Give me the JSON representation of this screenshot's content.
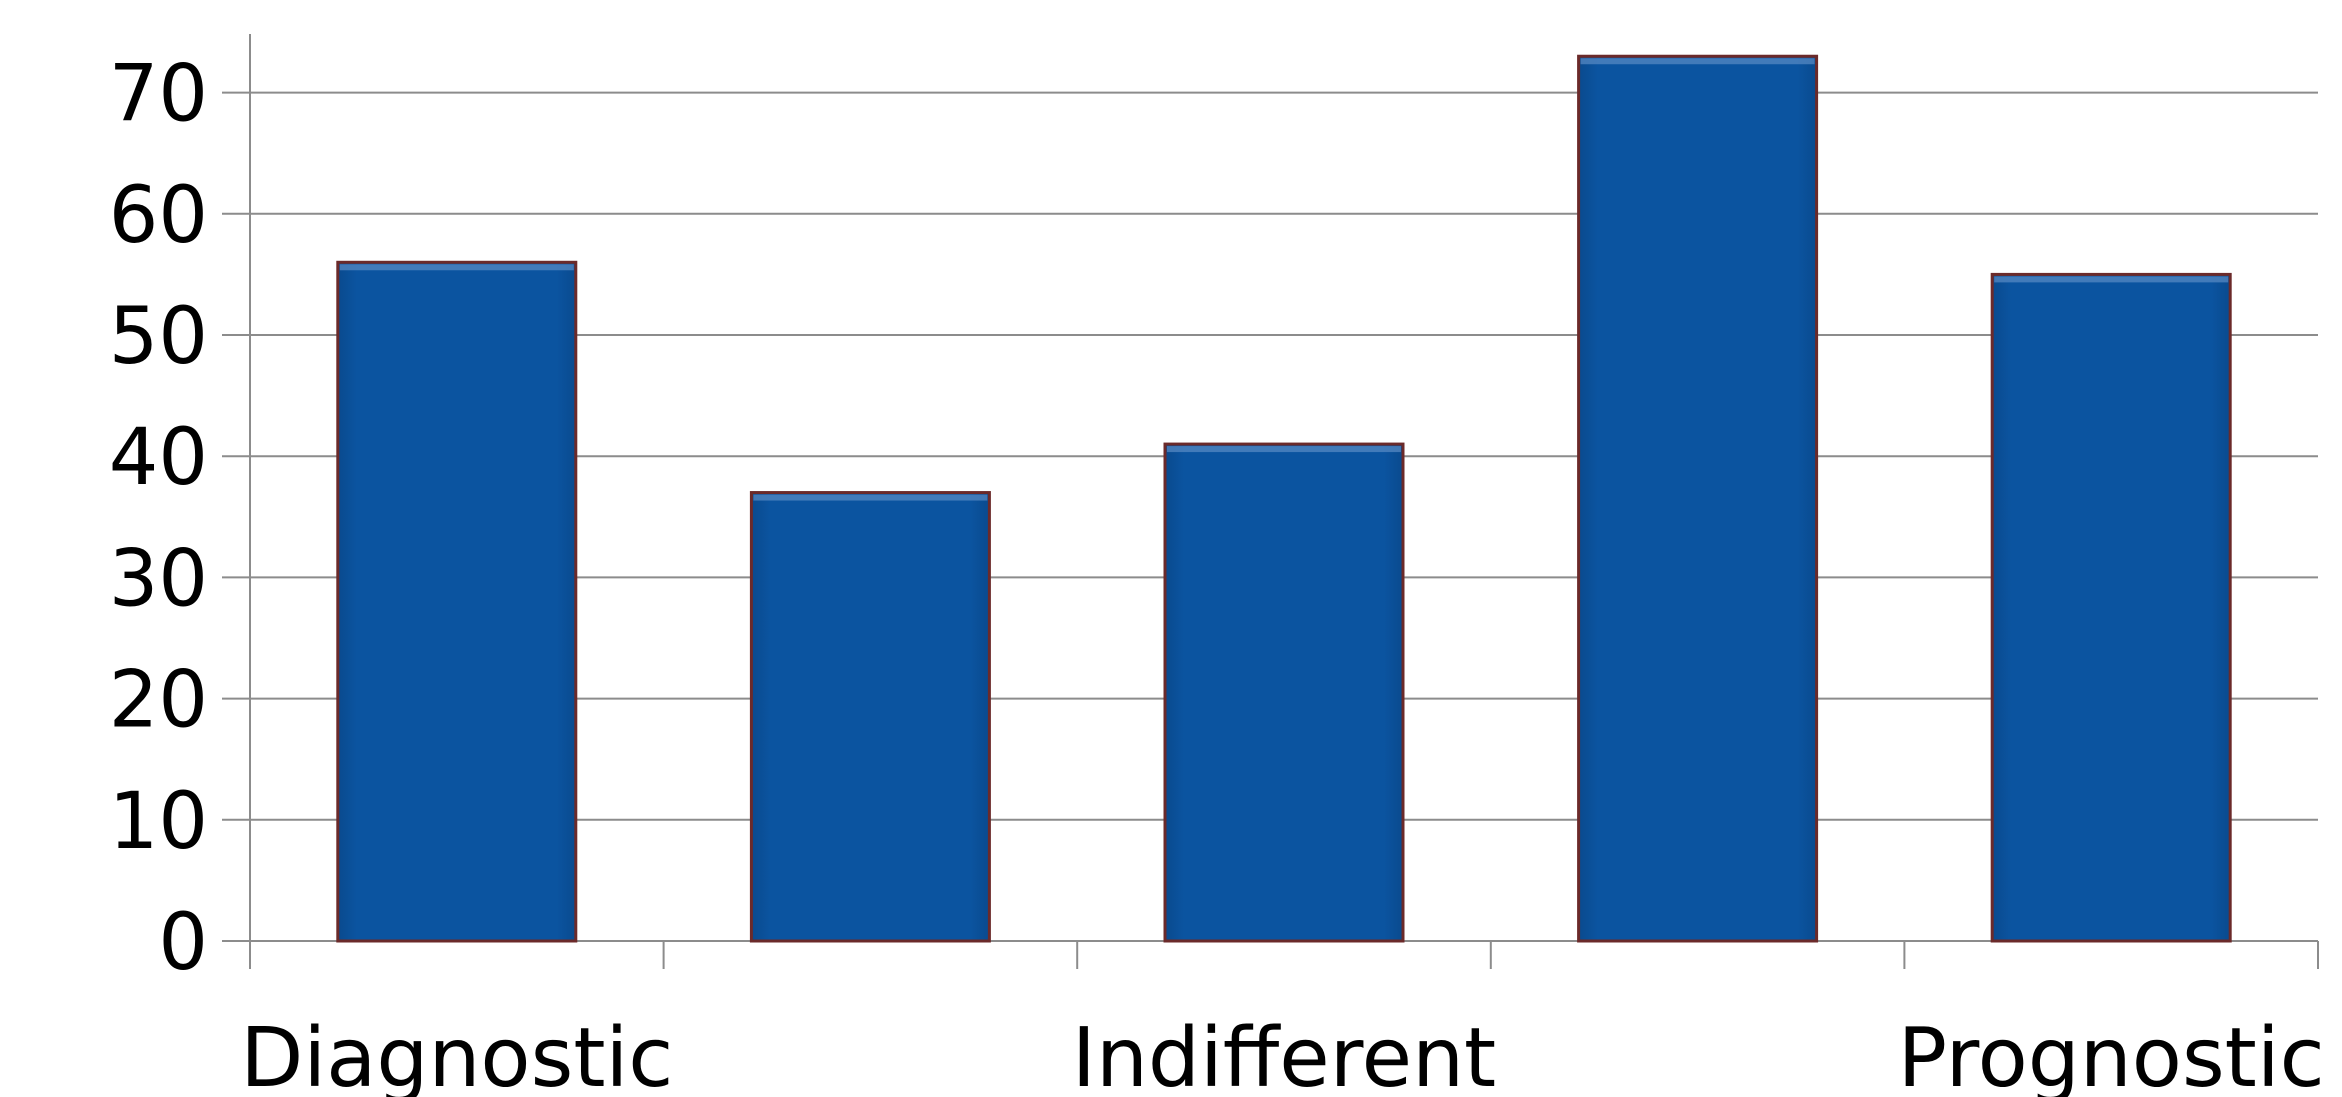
{
  "chart_data": {
    "type": "bar",
    "title": "",
    "xlabel": "",
    "ylabel": "",
    "ylim": [
      0,
      70
    ],
    "y_ticks": [
      0,
      10,
      20,
      30,
      40,
      50,
      60,
      70
    ],
    "grid": true,
    "categories": [
      "Diagnostic",
      "",
      "Indifferent",
      "",
      "Prognostic"
    ],
    "values": [
      56,
      37,
      41,
      73,
      55
    ],
    "colors": {
      "bar_fill": "#0a529c",
      "bar_edge": "#6b2a2a",
      "grid": "#8c8c8c",
      "axis": "#8c8c8c"
    }
  }
}
